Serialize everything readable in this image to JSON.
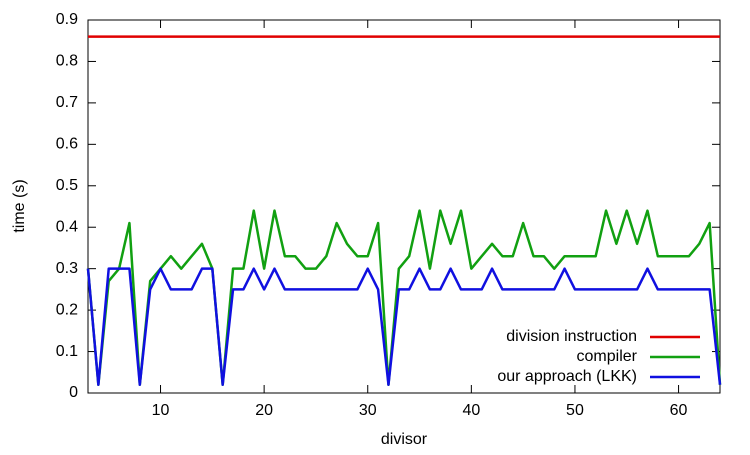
{
  "chart_data": {
    "type": "line",
    "x_label": "divisor",
    "y_label": "time (s)",
    "x": [
      3,
      4,
      5,
      6,
      7,
      8,
      9,
      10,
      11,
      12,
      13,
      14,
      15,
      16,
      17,
      18,
      19,
      20,
      21,
      22,
      23,
      24,
      25,
      26,
      27,
      28,
      29,
      30,
      31,
      32,
      33,
      34,
      35,
      36,
      37,
      38,
      39,
      40,
      41,
      42,
      43,
      44,
      45,
      46,
      47,
      48,
      49,
      50,
      51,
      52,
      53,
      54,
      55,
      56,
      57,
      58,
      59,
      60,
      61,
      62,
      63,
      64
    ],
    "series": [
      {
        "name": "division instruction",
        "color": "#e00000",
        "values": [
          0.86,
          0.86,
          0.86,
          0.86,
          0.86,
          0.86,
          0.86,
          0.86,
          0.86,
          0.86,
          0.86,
          0.86,
          0.86,
          0.86,
          0.86,
          0.86,
          0.86,
          0.86,
          0.86,
          0.86,
          0.86,
          0.86,
          0.86,
          0.86,
          0.86,
          0.86,
          0.86,
          0.86,
          0.86,
          0.86,
          0.86,
          0.86,
          0.86,
          0.86,
          0.86,
          0.86,
          0.86,
          0.86,
          0.86,
          0.86,
          0.86,
          0.86,
          0.86,
          0.86,
          0.86,
          0.86,
          0.86,
          0.86,
          0.86,
          0.86,
          0.86,
          0.86,
          0.86,
          0.86,
          0.86,
          0.86,
          0.86,
          0.86,
          0.86,
          0.86,
          0.86,
          0.86
        ]
      },
      {
        "name": "compiler",
        "color": "#11a011",
        "values": [
          0.3,
          0.02,
          0.27,
          0.3,
          0.41,
          0.02,
          0.27,
          0.3,
          0.33,
          0.3,
          0.33,
          0.36,
          0.3,
          0.02,
          0.3,
          0.3,
          0.44,
          0.3,
          0.44,
          0.33,
          0.33,
          0.3,
          0.3,
          0.33,
          0.41,
          0.36,
          0.33,
          0.33,
          0.41,
          0.02,
          0.3,
          0.33,
          0.44,
          0.3,
          0.44,
          0.36,
          0.44,
          0.3,
          0.33,
          0.36,
          0.33,
          0.33,
          0.41,
          0.33,
          0.33,
          0.3,
          0.33,
          0.33,
          0.33,
          0.33,
          0.44,
          0.36,
          0.44,
          0.36,
          0.44,
          0.33,
          0.33,
          0.33,
          0.33,
          0.36,
          0.41,
          0.02
        ]
      },
      {
        "name": "our approach (LKK)",
        "color": "#1010e0",
        "values": [
          0.3,
          0.02,
          0.3,
          0.3,
          0.3,
          0.02,
          0.25,
          0.3,
          0.25,
          0.25,
          0.25,
          0.3,
          0.3,
          0.02,
          0.25,
          0.25,
          0.3,
          0.25,
          0.3,
          0.25,
          0.25,
          0.25,
          0.25,
          0.25,
          0.25,
          0.25,
          0.25,
          0.3,
          0.25,
          0.02,
          0.25,
          0.25,
          0.3,
          0.25,
          0.25,
          0.3,
          0.25,
          0.25,
          0.25,
          0.3,
          0.25,
          0.25,
          0.25,
          0.25,
          0.25,
          0.25,
          0.3,
          0.25,
          0.25,
          0.25,
          0.25,
          0.25,
          0.25,
          0.25,
          0.3,
          0.25,
          0.25,
          0.25,
          0.25,
          0.25,
          0.25,
          0.02
        ]
      }
    ],
    "xlim": [
      3,
      64
    ],
    "ylim": [
      0,
      0.9
    ],
    "xticks": [
      10,
      20,
      30,
      40,
      50,
      60
    ],
    "yticks": [
      0,
      0.1,
      0.2,
      0.3,
      0.4,
      0.5,
      0.6,
      0.7,
      0.8,
      0.9
    ],
    "legend": "bottom-right"
  }
}
